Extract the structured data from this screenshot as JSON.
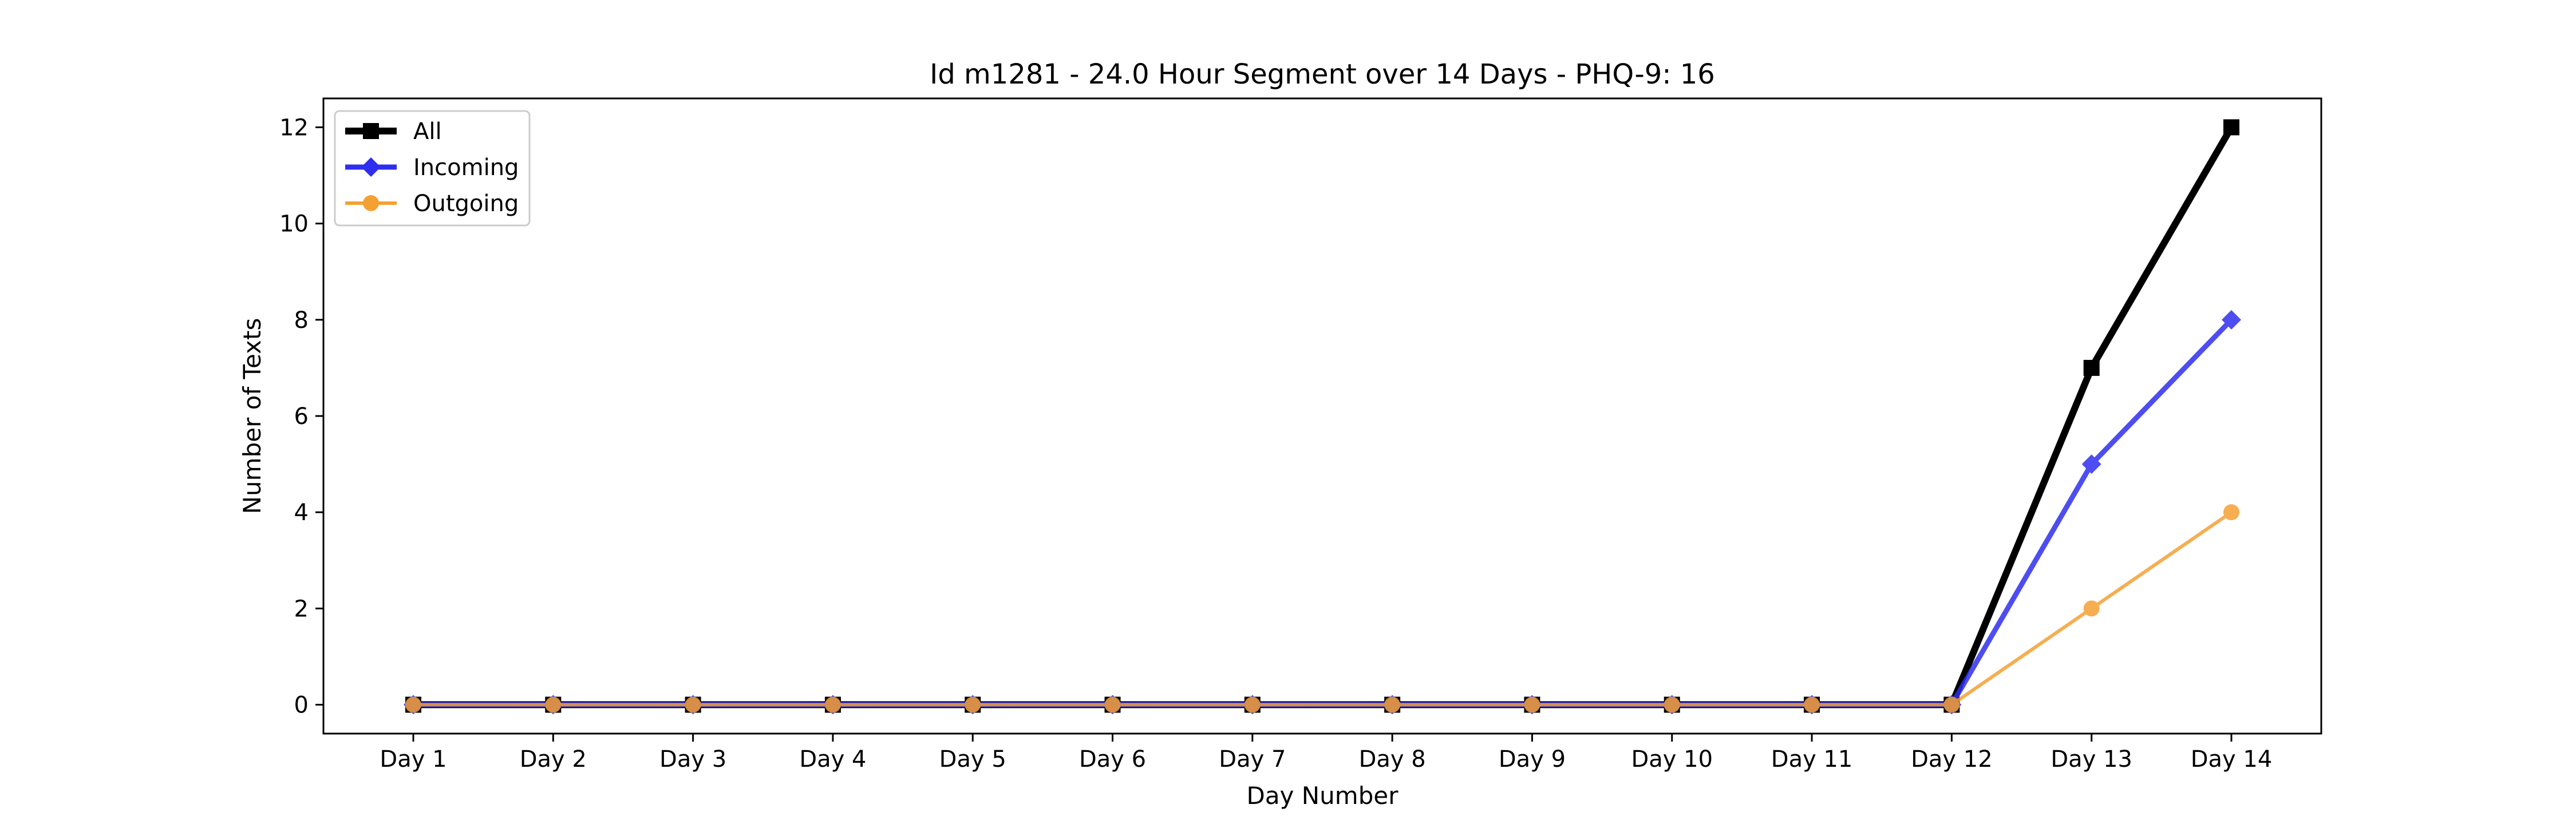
{
  "chart_data": {
    "type": "line",
    "title": "Id m1281 - 24.0 Hour Segment over 14 Days - PHQ-9: 16",
    "xlabel": "Day Number",
    "ylabel": "Number of Texts",
    "categories": [
      "Day 1",
      "Day 2",
      "Day 3",
      "Day 4",
      "Day 5",
      "Day 6",
      "Day 7",
      "Day 8",
      "Day 9",
      "Day 10",
      "Day 11",
      "Day 12",
      "Day 13",
      "Day 14"
    ],
    "yticks": [
      0,
      2,
      4,
      6,
      8,
      10,
      12
    ],
    "ylim": [
      -0.6,
      12.6
    ],
    "grid": false,
    "legend_position": "top-left",
    "series": [
      {
        "name": "All",
        "color": "#000000",
        "marker": "square",
        "values": [
          0,
          0,
          0,
          0,
          0,
          0,
          0,
          0,
          0,
          0,
          0,
          0,
          7,
          12
        ]
      },
      {
        "name": "Incoming",
        "color": "#2e2ef0",
        "marker": "diamond",
        "values": [
          0,
          0,
          0,
          0,
          0,
          0,
          0,
          0,
          0,
          0,
          0,
          0,
          5,
          8
        ]
      },
      {
        "name": "Outgoing",
        "color": "#f5a033",
        "marker": "circle",
        "values": [
          0,
          0,
          0,
          0,
          0,
          0,
          0,
          0,
          0,
          0,
          0,
          0,
          2,
          4
        ]
      }
    ]
  }
}
